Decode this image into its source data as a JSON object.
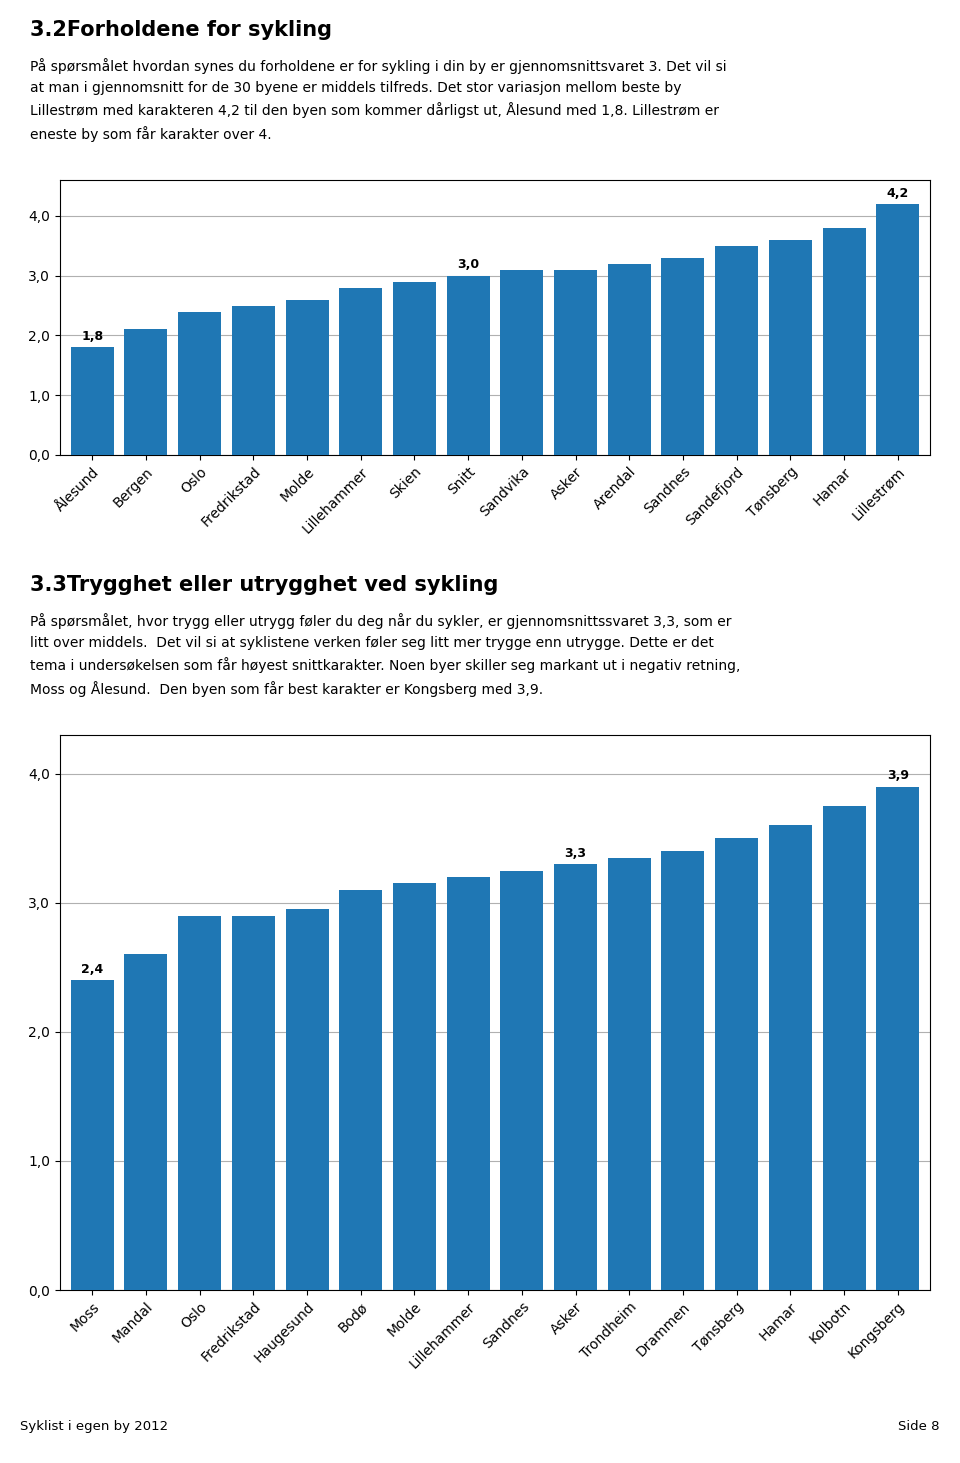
{
  "chart_data": [
    {
      "type": "bar",
      "title": "3.2Forholdene for sykling",
      "subtitle": "På spørsmålet hvordan synes du forholdene er for sykling i din by er gjennomsnittsvaret 3. Det vil si\nat man i gjennomsnitt for de 30 byene er middels tilfreds. Det stor variasjon mellom beste by\nLillestrøm med karakteren 4,2 til den byen som kommer dårligst ut, Ålesund med 1,8. Lillestrøm er\neneste by som får karakter over 4.",
      "categories": [
        "Ålesund",
        "Bergen",
        "Oslo",
        "Fredrikstad",
        "Molde",
        "Lillehammer",
        "Skien",
        "Snitt",
        "Sandvika",
        "Asker",
        "Arendal",
        "Sandnes",
        "Sandefjord",
        "Tønsberg",
        "Hamar",
        "Lillestrøm"
      ],
      "values": [
        1.8,
        2.1,
        2.4,
        2.5,
        2.6,
        2.8,
        2.9,
        3.0,
        3.1,
        3.1,
        3.2,
        3.3,
        3.5,
        3.6,
        3.8,
        4.2
      ],
      "data_labels": true,
      "value_labels": [
        "1,8",
        null,
        null,
        null,
        null,
        null,
        null,
        "3,0",
        null,
        null,
        null,
        null,
        null,
        null,
        null,
        "4,2"
      ],
      "ylim": [
        0,
        4.6
      ],
      "yticks": [
        {
          "value": 0.0,
          "label": "0,0"
        },
        {
          "value": 1.0,
          "label": "1,0"
        },
        {
          "value": 2.0,
          "label": "2,0"
        },
        {
          "value": 3.0,
          "label": "3,0"
        },
        {
          "value": 4.0,
          "label": "4,0"
        }
      ],
      "grid": true
    },
    {
      "type": "bar",
      "title": "3.3Trygghet eller utrygghet ved sykling",
      "subtitle": "På spørsmålet, hvor trygg eller utrygg føler du deg når du sykler, er gjennomsnittssvaret 3,3, som er\nlitt over middels.  Det vil si at syklistene verken føler seg litt mer trygge enn utrygge. Dette er det\ntema i undersøkelsen som får høyest snittkarakter. Noen byer skiller seg markant ut i negativ retning,\nMoss og Ålesund.  Den byen som får best karakter er Kongsberg med 3,9.",
      "categories": [
        "Moss",
        "Mandal",
        "Oslo",
        "Fredrikstad",
        "Haugesund",
        "Bodø",
        "Molde",
        "Lillehammer",
        "Sandnes",
        "Asker",
        "Trondheim",
        "Drammen",
        "Tønsberg",
        "Hamar",
        "Kolbotn",
        "Kongsberg"
      ],
      "values": [
        2.4,
        2.6,
        2.9,
        2.9,
        2.95,
        3.1,
        3.15,
        3.2,
        3.25,
        3.3,
        3.35,
        3.4,
        3.5,
        3.6,
        3.75,
        3.9
      ],
      "data_labels": true,
      "value_labels": [
        "2,4",
        null,
        null,
        null,
        null,
        null,
        null,
        null,
        null,
        "3,3",
        null,
        null,
        null,
        null,
        null,
        "3,9"
      ],
      "ylim": [
        0,
        4.3
      ],
      "yticks": [
        {
          "value": 0.0,
          "label": "0,0"
        },
        {
          "value": 1.0,
          "label": "1,0"
        },
        {
          "value": 2.0,
          "label": "2,0"
        },
        {
          "value": 3.0,
          "label": "3,0"
        },
        {
          "value": 4.0,
          "label": "4,0"
        }
      ],
      "grid": true
    }
  ],
  "footer_left": "Syklist i egen by 2012",
  "footer_right": "Side 8"
}
